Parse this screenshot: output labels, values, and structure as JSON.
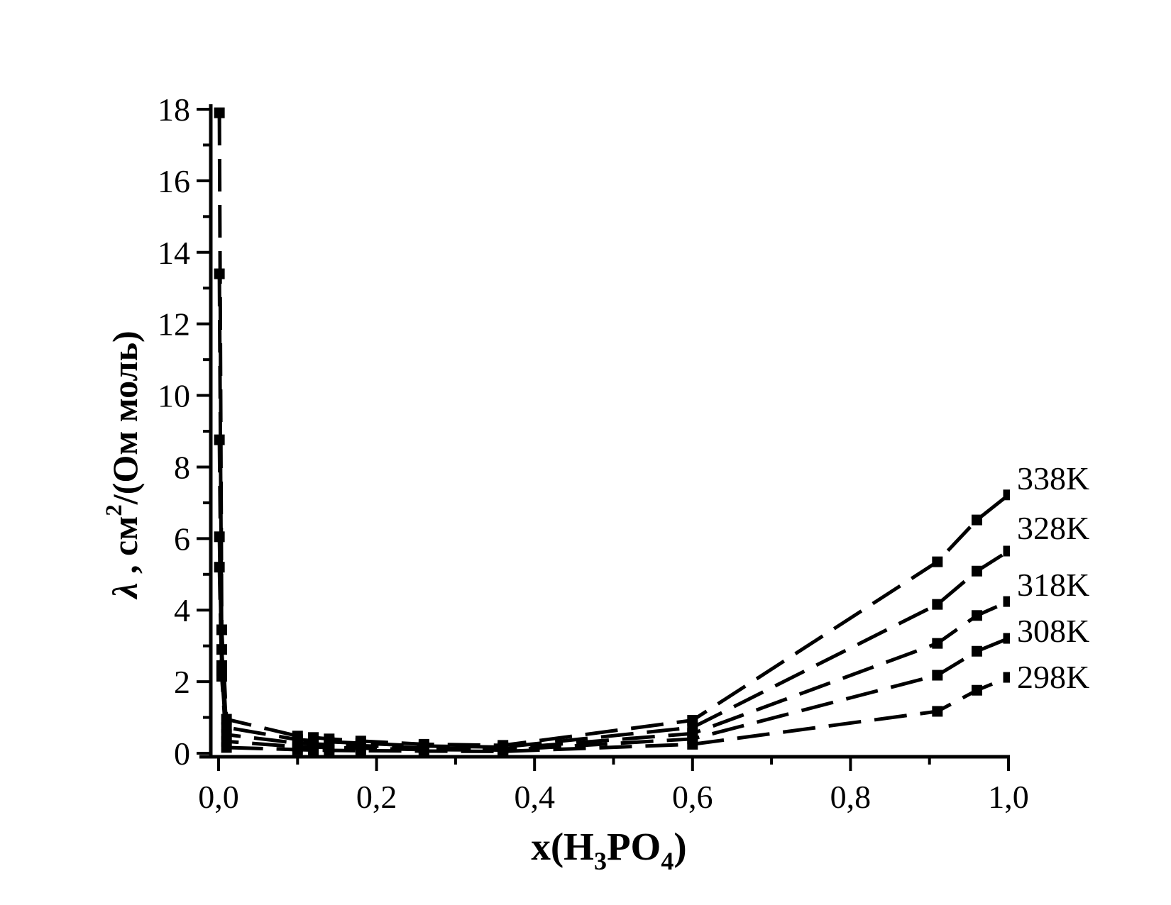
{
  "figure": {
    "background": "#ffffff",
    "ink": "#000000"
  },
  "chart_data": {
    "type": "line",
    "title": "",
    "xlabel": "x(H3PO4)",
    "xlabel_parts": {
      "pre": "x(H",
      "sub1": "3",
      "mid": "PO",
      "sub2": "4",
      "post": ")"
    },
    "ylabel": "λ , см2/(Ом моль)",
    "ylabel_parts": {
      "lambda": "λ",
      "pre": " , см",
      "sup": "2",
      "post": "/(Ом моль)"
    },
    "xlim": [
      0,
      1
    ],
    "ylim": [
      0,
      18
    ],
    "grid": false,
    "legend_position": "end-of-line labels at right",
    "marker": "filled-square",
    "line_style": "dashed",
    "x_major_ticks": [
      {
        "v": 0.0,
        "label": "0,0"
      },
      {
        "v": 0.2,
        "label": "0,2"
      },
      {
        "v": 0.4,
        "label": "0,4"
      },
      {
        "v": 0.6,
        "label": "0,6"
      },
      {
        "v": 0.8,
        "label": "0,8"
      },
      {
        "v": 1.0,
        "label": "1,0"
      }
    ],
    "x_minor_ticks": [
      0.1,
      0.3,
      0.5,
      0.7,
      0.9
    ],
    "y_major_ticks": [
      {
        "v": 0,
        "label": "0"
      },
      {
        "v": 2,
        "label": "2"
      },
      {
        "v": 4,
        "label": "4"
      },
      {
        "v": 6,
        "label": "6"
      },
      {
        "v": 8,
        "label": "8"
      },
      {
        "v": 10,
        "label": "10"
      },
      {
        "v": 12,
        "label": "12"
      },
      {
        "v": 14,
        "label": "14"
      },
      {
        "v": 16,
        "label": "16"
      },
      {
        "v": 18,
        "label": "18"
      }
    ],
    "y_minor_ticks": [
      1,
      3,
      5,
      7,
      9,
      11,
      13,
      15,
      17
    ],
    "x": [
      0.001,
      0.004,
      0.01,
      0.1,
      0.12,
      0.14,
      0.18,
      0.26,
      0.36,
      0.6,
      0.91,
      0.96,
      1.0
    ],
    "series": [
      {
        "name": "338K",
        "y": [
          17.9,
          3.45,
          0.95,
          0.48,
          0.44,
          0.4,
          0.34,
          0.25,
          0.22,
          0.92,
          5.35,
          6.52,
          7.22
        ]
      },
      {
        "name": "328K",
        "y": [
          13.4,
          2.9,
          0.72,
          0.38,
          0.35,
          0.32,
          0.28,
          0.2,
          0.17,
          0.72,
          4.16,
          5.09,
          5.65
        ]
      },
      {
        "name": "318K",
        "y": [
          8.76,
          2.45,
          0.52,
          0.28,
          0.26,
          0.24,
          0.21,
          0.15,
          0.13,
          0.55,
          3.07,
          3.85,
          4.24
        ]
      },
      {
        "name": "308K",
        "y": [
          6.05,
          2.3,
          0.33,
          0.18,
          0.17,
          0.16,
          0.14,
          0.1,
          0.09,
          0.4,
          2.18,
          2.85,
          3.21
        ]
      },
      {
        "name": "298K",
        "y": [
          5.2,
          2.15,
          0.16,
          0.1,
          0.09,
          0.08,
          0.07,
          0.06,
          0.05,
          0.25,
          1.17,
          1.76,
          2.12
        ]
      }
    ]
  }
}
